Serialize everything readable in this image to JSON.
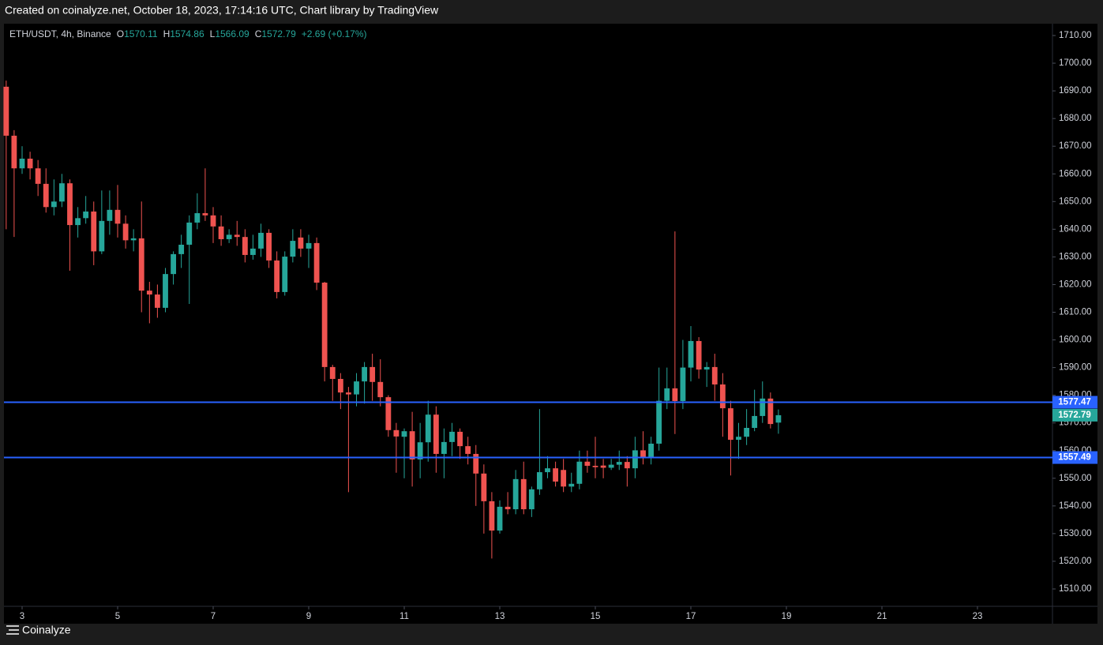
{
  "caption": "Created on coinalyze.net, October 18, 2023, 17:14:16 UTC, Chart library by TradingView",
  "footer": "Coinalyze",
  "chart_data": {
    "type": "candlestick",
    "symbol": "ETH/USDT, 4h, Binance",
    "ohlc_labels": [
      "O",
      "H",
      "L",
      "C"
    ],
    "change": "+2.69 (+0.17%)",
    "up_color": "#26a69a",
    "down_color": "#ef5350",
    "x": [
      2.667,
      2.833,
      3,
      3.167,
      3.333,
      3.5,
      3.667,
      3.833,
      4,
      4.167,
      4.333,
      4.5,
      4.667,
      4.833,
      5,
      5.167,
      5.333,
      5.5,
      5.667,
      5.833,
      6,
      6.167,
      6.333,
      6.5,
      6.667,
      6.833,
      7,
      7.167,
      7.333,
      7.5,
      7.667,
      7.833,
      8,
      8.167,
      8.333,
      8.5,
      8.667,
      8.833,
      9,
      9.167,
      9.333,
      9.5,
      9.667,
      9.833,
      10,
      10.167,
      10.333,
      10.5,
      10.667,
      10.833,
      11,
      11.167,
      11.333,
      11.5,
      11.667,
      11.833,
      12,
      12.167,
      12.333,
      12.5,
      12.667,
      12.833,
      13,
      13.167,
      13.333,
      13.5,
      13.667,
      13.833,
      14,
      14.167,
      14.333,
      14.5,
      14.667,
      14.833,
      15,
      15.167,
      15.333,
      15.5,
      15.667,
      15.833,
      16,
      16.167,
      16.333,
      16.5,
      16.667,
      16.833,
      17,
      17.167,
      17.333,
      17.5,
      17.667,
      17.833,
      18,
      18.167,
      18.333,
      18.5,
      18.667,
      18.833
    ],
    "open": [
      1691.5,
      1673.8,
      1662,
      1665.5,
      1662,
      1656.4,
      1648,
      1650,
      1656.6,
      1641.5,
      1644,
      1646.4,
      1632,
      1643,
      1647,
      1642,
      1636,
      1636.7,
      1617.8,
      1616.4,
      1611.6,
      1623.8,
      1631,
      1634.4,
      1642.4,
      1645.8,
      1645,
      1641,
      1636.4,
      1638,
      1637.2,
      1630.7,
      1633,
      1638.7,
      1628.7,
      1617.3,
      1630.1,
      1637,
      1633,
      1635,
      1620.7,
      1590.2,
      1585.9,
      1581,
      1580.3,
      1585,
      1590.2,
      1584.8,
      1579.3,
      1567.4,
      1565,
      1567,
      1556.8,
      1563,
      1573,
      1558.8,
      1563.1,
      1566.8,
      1561.6,
      1558.8,
      1551.7,
      1541.7,
      1531.1,
      1539.7,
      1538.8,
      1549.7,
      1538.8,
      1546,
      1552.2,
      1553.6,
      1553,
      1547,
      1548,
      1556,
      1554.5,
      1554.6,
      1553.8,
      1554.9,
      1555.9,
      1553.6,
      1560.1,
      1557.4,
      1562.5,
      1578,
      1582.5,
      1577.9,
      1590,
      1599.6,
      1589.3,
      1590.2,
      1583.9,
      1575.3,
      1563.9,
      1565,
      1568.2,
      1572.5,
      1578.8,
      1570.11
    ],
    "high": [
      1693.7,
      1675.8,
      1670,
      1668,
      1665,
      1662,
      1658,
      1660,
      1658,
      1648,
      1652,
      1650,
      1654,
      1654,
      1656,
      1645,
      1640,
      1650,
      1621,
      1620,
      1626,
      1632,
      1638,
      1645,
      1653,
      1662,
      1648,
      1645,
      1640,
      1643,
      1640,
      1638,
      1642,
      1640,
      1632,
      1632,
      1640,
      1640,
      1638,
      1637,
      1621,
      1591,
      1588,
      1583,
      1588,
      1592,
      1595,
      1593,
      1580,
      1570,
      1568,
      1574,
      1570,
      1578,
      1576,
      1568,
      1570,
      1568,
      1565,
      1562,
      1555,
      1545,
      1542,
      1545,
      1553,
      1556,
      1547,
      1575,
      1558,
      1556,
      1557,
      1552,
      1560,
      1560,
      1565,
      1557,
      1557,
      1560,
      1558,
      1565,
      1567,
      1565,
      1590,
      1590,
      1639.2,
      1600,
      1605,
      1601,
      1592,
      1595,
      1588,
      1578,
      1570,
      1575,
      1582,
      1585,
      1581,
      1574.86
    ],
    "low": [
      1640,
      1637.2,
      1660,
      1658,
      1652,
      1646,
      1645,
      1648,
      1625,
      1637,
      1642,
      1627,
      1631,
      1638,
      1637,
      1633,
      1632,
      1610,
      1606,
      1608,
      1610,
      1620,
      1626,
      1613,
      1640,
      1643,
      1635,
      1634,
      1635,
      1634,
      1628,
      1629,
      1630,
      1626,
      1615,
      1616,
      1628,
      1630,
      1626,
      1618,
      1585,
      1578,
      1575,
      1545,
      1576,
      1577,
      1578,
      1576,
      1565,
      1552,
      1550,
      1547,
      1550,
      1556,
      1552,
      1550,
      1558,
      1557,
      1555,
      1540,
      1530,
      1521,
      1530,
      1537,
      1537,
      1537,
      1536,
      1544,
      1550,
      1547,
      1545,
      1545,
      1546,
      1552,
      1550,
      1550,
      1553,
      1553,
      1547,
      1550,
      1555,
      1555,
      1560,
      1575,
      1566,
      1575,
      1585,
      1586,
      1583,
      1578,
      1565,
      1551,
      1557,
      1562,
      1567,
      1570,
      1568,
      1566.09
    ],
    "close": [
      1673.8,
      1662,
      1665.5,
      1662,
      1656.4,
      1648,
      1650,
      1656.6,
      1641.5,
      1644,
      1646.4,
      1632,
      1643,
      1647,
      1642,
      1636,
      1636.7,
      1617.8,
      1616.4,
      1611.6,
      1623.8,
      1631,
      1634.4,
      1642.4,
      1645.8,
      1645,
      1641,
      1636.4,
      1638,
      1637.2,
      1630.7,
      1633,
      1638.7,
      1628.7,
      1617.3,
      1630.1,
      1635.8,
      1633,
      1635,
      1620.7,
      1590.2,
      1585.9,
      1581,
      1580.3,
      1585,
      1590.2,
      1584.8,
      1579.3,
      1567.4,
      1565.1,
      1567,
      1556.8,
      1563,
      1573,
      1558.8,
      1563.1,
      1566.8,
      1561.6,
      1558.8,
      1551.7,
      1541.7,
      1531.1,
      1539.7,
      1538.8,
      1549.7,
      1538.8,
      1546,
      1552.2,
      1553.6,
      1548.8,
      1547,
      1548,
      1556,
      1554.5,
      1554,
      1553.8,
      1554.9,
      1555.9,
      1553.6,
      1560.1,
      1557.4,
      1562.5,
      1578,
      1582.5,
      1577.9,
      1590,
      1599.6,
      1589.3,
      1590.2,
      1583.9,
      1575.3,
      1563.9,
      1565,
      1568.2,
      1572.5,
      1578.8,
      1569.6,
      1572.79
    ],
    "hlines": [
      {
        "value": 1577.47,
        "color": "#2962ff"
      },
      {
        "value": 1557.49,
        "color": "#2962ff"
      }
    ],
    "xlim": [
      2.62,
      24.57
    ],
    "xticks": [
      3,
      5,
      7,
      9,
      11,
      13,
      15,
      17,
      19,
      21,
      23
    ],
    "ylim": [
      1503.72,
      1714.28
    ],
    "yticks": [
      {
        "value": 1510,
        "label": "1510.00"
      },
      {
        "value": 1520,
        "label": "1520.00"
      },
      {
        "value": 1530,
        "label": "1530.00"
      },
      {
        "value": 1540,
        "label": "1540.00"
      },
      {
        "value": 1550,
        "label": "1550.00"
      },
      {
        "value": 1560,
        "label": "1560.00"
      },
      {
        "value": 1570,
        "label": "1570.00"
      },
      {
        "value": 1580,
        "label": "1580.00"
      },
      {
        "value": 1590,
        "label": "1590.00"
      },
      {
        "value": 1600,
        "label": "1600.00"
      },
      {
        "value": 1610,
        "label": "1610.00"
      },
      {
        "value": 1620,
        "label": "1620.00"
      },
      {
        "value": 1630,
        "label": "1630.00"
      },
      {
        "value": 1640,
        "label": "1640.00"
      },
      {
        "value": 1650,
        "label": "1650.00"
      },
      {
        "value": 1660,
        "label": "1660.00"
      },
      {
        "value": 1670,
        "label": "1670.00"
      },
      {
        "value": 1680,
        "label": "1680.00"
      },
      {
        "value": 1690,
        "label": "1690.00"
      },
      {
        "value": 1700,
        "label": "1700.00"
      },
      {
        "value": 1710,
        "label": "1710.00"
      }
    ]
  }
}
